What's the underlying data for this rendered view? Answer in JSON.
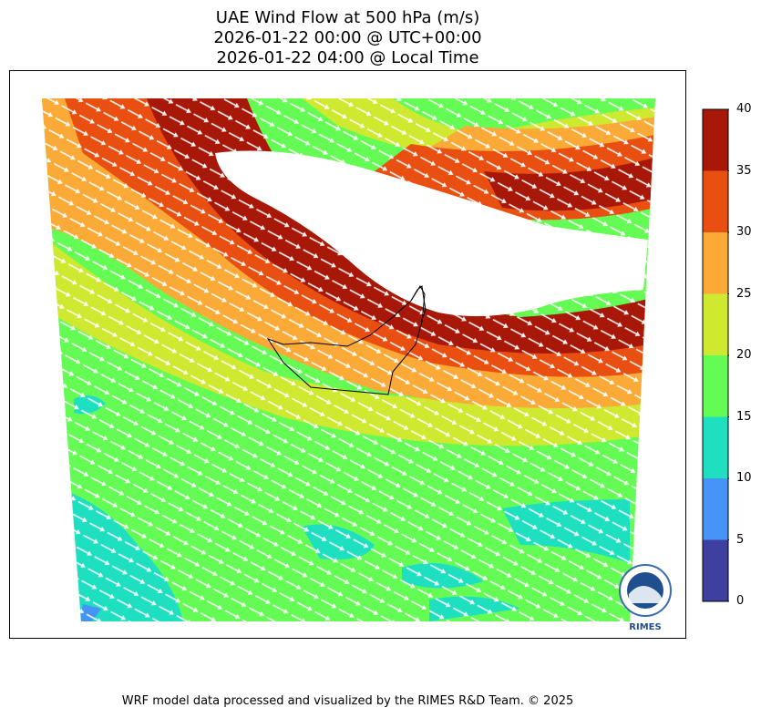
{
  "title": {
    "line1": "UAE Wind Flow at 500 hPa (m/s)",
    "line2": "2026-01-22 00:00 @ UTC+00:00",
    "line3": "2026-01-22 04:00 @ Local Time"
  },
  "footer": "WRF model data processed and visualized by the RIMES R&D Team. © 2025",
  "logo": {
    "text": "RIMES",
    "ring_text": "Regional Integrated Multi-Hazard Early Warning System"
  },
  "colorbar": {
    "ticks": [
      "0",
      "5",
      "10",
      "15",
      "20",
      "25",
      "30",
      "35",
      "40"
    ],
    "colors": [
      "#3f3f9f",
      "#4694f8",
      "#1ee0c0",
      "#64fc54",
      "#cfe830",
      "#fbaa38",
      "#e84f10",
      "#a81808"
    ]
  },
  "map": {
    "background": "#ffffff",
    "arrow_color": "#ffffff",
    "coastline_color": "#000000"
  }
}
